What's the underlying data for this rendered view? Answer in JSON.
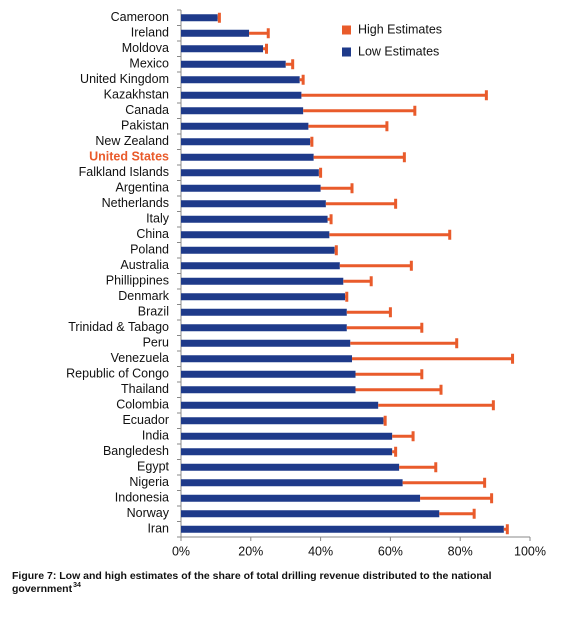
{
  "chart_data": {
    "type": "bar",
    "caption": "Figure 7: Low and high estimates of the share of total drilling revenue distributed to the national government",
    "caption_note": "34",
    "categories": [
      "Cameroon",
      "Ireland",
      "Moldova",
      "Mexico",
      "United Kingdom",
      "Kazakhstan",
      "Canada",
      "Pakistan",
      "New Zealand",
      "United States",
      "Falkland Islands",
      "Argentina",
      "Netherlands",
      "Italy",
      "China",
      "Poland",
      "Australia",
      "Phillippines",
      "Denmark",
      "Brazil",
      "Trinidad & Tabago",
      "Peru",
      "Venezuela",
      "Republic of Congo",
      "Thailand",
      "Colombia",
      "Ecuador",
      "India",
      "Bangledesh",
      "Egypt",
      "Nigeria",
      "Indonesia",
      "Norway",
      "Iran"
    ],
    "highlight": 9,
    "highlight_color": "#e95b2b",
    "series": [
      {
        "name": "High Estimates",
        "color": "#e95b2b",
        "values": [
          11,
          25,
          24.5,
          32,
          35,
          87.5,
          67,
          59,
          37.5,
          64,
          40,
          49,
          61.5,
          43,
          77,
          44.5,
          66,
          54.5,
          47.5,
          60,
          69,
          79,
          95,
          69,
          74.5,
          89.5,
          58.5,
          66.5,
          61.5,
          73,
          87,
          89,
          84,
          93.5
        ]
      },
      {
        "name": "Low Estimates",
        "color": "#1e3a8a",
        "values": [
          10.5,
          19.5,
          23.5,
          30,
          34,
          34.5,
          35,
          36.5,
          37,
          38,
          39.5,
          40,
          41.5,
          42,
          42.5,
          44,
          45.5,
          46.5,
          47,
          47.5,
          47.5,
          48.5,
          49,
          50,
          50,
          56.5,
          58,
          60.5,
          60.5,
          62.5,
          63.5,
          68.5,
          74,
          92.5
        ]
      }
    ],
    "xlim": [
      0,
      100
    ],
    "xticks": [
      {
        "value": 0,
        "label": "0%"
      },
      {
        "value": 20,
        "label": "20%"
      },
      {
        "value": 40,
        "label": "40%"
      },
      {
        "value": 60,
        "label": "60%"
      },
      {
        "value": 80,
        "label": "80%"
      },
      {
        "value": 100,
        "label": "100%"
      }
    ]
  }
}
